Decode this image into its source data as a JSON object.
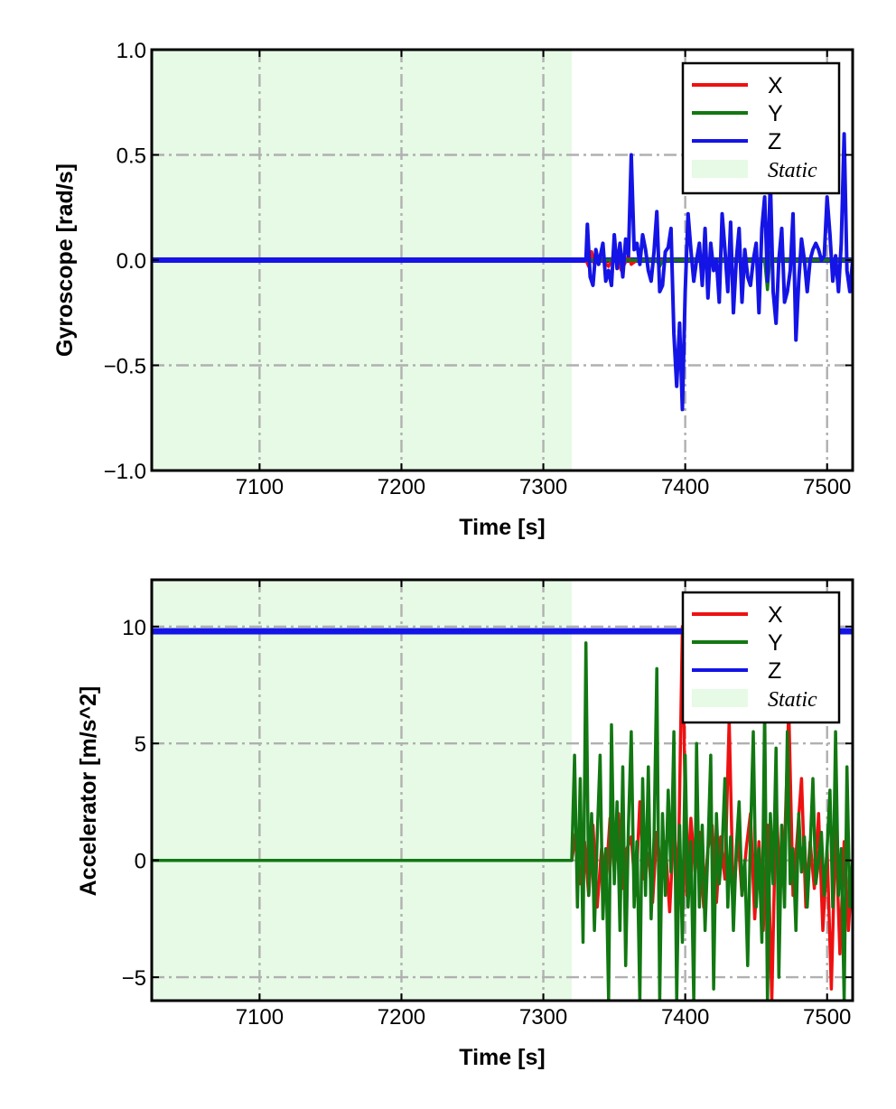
{
  "chart_data": [
    {
      "type": "line",
      "xlabel": "Time [s]",
      "ylabel": "Gyroscope [rad/s]",
      "xlim": [
        7024,
        7518
      ],
      "ylim": [
        -1.0,
        1.0
      ],
      "xticks": [
        7100,
        7200,
        7300,
        7400,
        7500
      ],
      "xtick_labels": [
        "7100",
        "7200",
        "7300",
        "7400",
        "7500"
      ],
      "yticks": [
        1.0,
        0.5,
        0.0,
        -0.5,
        -1.0
      ],
      "ytick_labels": [
        "1.0",
        "0.5",
        "0.0",
        "−0.5",
        "−1.0"
      ],
      "grid": true,
      "legend_position": "top-right",
      "static_span": {
        "label": "Static",
        "x": [
          7024,
          7320
        ],
        "color": "#e6fae6"
      },
      "series": [
        {
          "name": "X",
          "color": "#ee1111",
          "x": [
            7024,
            7330,
            7332,
            7334,
            7336,
            7340,
            7346,
            7350,
            7355,
            7360,
            7362,
            7366,
            7518
          ],
          "y": [
            0.0,
            0.0,
            -0.03,
            0.04,
            -0.02,
            0.01,
            -0.03,
            0.03,
            -0.05,
            0.02,
            -0.02,
            0.0,
            0.0
          ]
        },
        {
          "name": "Y",
          "color": "#127812",
          "x": [
            7024,
            7380,
            7382,
            7384,
            7420,
            7456,
            7458,
            7460,
            7462,
            7518
          ],
          "y": [
            0.0,
            0.0,
            -0.03,
            0.0,
            0.0,
            0.0,
            -0.14,
            0.04,
            0.0,
            0.0
          ]
        },
        {
          "name": "Z",
          "color": "#1414e6",
          "x": [
            7024,
            7330,
            7331,
            7333,
            7335,
            7337,
            7339,
            7342,
            7344,
            7346,
            7348,
            7350,
            7352,
            7354,
            7356,
            7358,
            7360,
            7362,
            7364,
            7366,
            7368,
            7370,
            7372,
            7374,
            7376,
            7378,
            7380,
            7382,
            7384,
            7386,
            7388,
            7390,
            7392,
            7394,
            7396,
            7398,
            7400,
            7402,
            7404,
            7406,
            7408,
            7410,
            7412,
            7414,
            7416,
            7418,
            7420,
            7422,
            7424,
            7426,
            7428,
            7430,
            7432,
            7434,
            7436,
            7438,
            7440,
            7442,
            7444,
            7446,
            7448,
            7450,
            7452,
            7454,
            7456,
            7458,
            7460,
            7462,
            7464,
            7466,
            7468,
            7470,
            7472,
            7474,
            7476,
            7478,
            7480,
            7482,
            7484,
            7486,
            7488,
            7490,
            7492,
            7494,
            7496,
            7498,
            7500,
            7502,
            7504,
            7506,
            7508,
            7510,
            7512,
            7514,
            7516,
            7518
          ],
          "y": [
            0.0,
            0.0,
            0.17,
            -0.08,
            -0.12,
            0.05,
            -0.02,
            0.08,
            -0.1,
            -0.05,
            -0.12,
            0.12,
            -0.04,
            0.08,
            -0.08,
            0.1,
            0.02,
            0.5,
            0.05,
            0.08,
            -0.02,
            0.12,
            0.05,
            -0.05,
            -0.1,
            0.04,
            0.23,
            -0.15,
            -0.12,
            0.04,
            0.06,
            0.15,
            -0.35,
            -0.6,
            -0.3,
            -0.71,
            -0.15,
            0.22,
            0.05,
            -0.1,
            0.0,
            0.08,
            -0.12,
            0.15,
            -0.18,
            0.08,
            -0.05,
            0.0,
            -0.2,
            0.22,
            0.05,
            -0.15,
            0.18,
            -0.25,
            0.0,
            0.15,
            -0.2,
            0.05,
            -0.08,
            -0.12,
            0.0,
            0.08,
            -0.25,
            0.15,
            0.3,
            -0.1,
            0.38,
            -0.15,
            -0.3,
            0.0,
            0.15,
            -0.2,
            -0.15,
            -0.05,
            0.22,
            -0.38,
            -0.1,
            0.1,
            0.0,
            -0.15,
            0.0,
            0.05,
            0.08,
            0.05,
            0.0,
            0.02,
            0.3,
            0.12,
            -0.1,
            0.02,
            -0.15,
            0.08,
            0.6,
            -0.05,
            -0.15,
            0.0
          ]
        }
      ]
    },
    {
      "type": "line",
      "xlabel": "Time [s]",
      "ylabel": "Accelerator [m/s^2]",
      "xlim": [
        7024,
        7518
      ],
      "ylim": [
        -6.0,
        12.0
      ],
      "xticks": [
        7100,
        7200,
        7300,
        7400,
        7500
      ],
      "xtick_labels": [
        "7100",
        "7200",
        "7300",
        "7400",
        "7500"
      ],
      "yticks": [
        10,
        5,
        0,
        -5
      ],
      "ytick_labels": [
        "10",
        "5",
        "0",
        "−5"
      ],
      "grid": true,
      "legend_position": "top-right",
      "static_span": {
        "label": "Static",
        "x": [
          7024,
          7320
        ],
        "color": "#e6fae6"
      },
      "series": [
        {
          "name": "X",
          "color": "#ee1111",
          "x": [
            7024,
            7320,
            7323,
            7326,
            7329,
            7332,
            7335,
            7338,
            7341,
            7344,
            7347,
            7350,
            7353,
            7356,
            7359,
            7362,
            7365,
            7368,
            7371,
            7374,
            7377,
            7380,
            7383,
            7386,
            7389,
            7392,
            7395,
            7398,
            7401,
            7404,
            7407,
            7410,
            7413,
            7416,
            7419,
            7422,
            7425,
            7428,
            7431,
            7434,
            7437,
            7440,
            7443,
            7446,
            7449,
            7452,
            7455,
            7458,
            7461,
            7464,
            7467,
            7470,
            7473,
            7476,
            7479,
            7482,
            7485,
            7488,
            7491,
            7494,
            7497,
            7500,
            7503,
            7506,
            7509,
            7512,
            7515,
            7518
          ],
          "y": [
            0.0,
            0.0,
            1.2,
            -1.0,
            0.8,
            -1.5,
            1.5,
            -2.0,
            0.5,
            -1.0,
            1.8,
            -0.5,
            2.0,
            -1.2,
            0.5,
            1.0,
            -1.5,
            2.5,
            -0.8,
            0.3,
            -1.8,
            1.2,
            -0.5,
            0.8,
            -2.2,
            1.5,
            -1.0,
            10.0,
            -1.5,
            1.8,
            -0.5,
            1.2,
            -2.0,
            0.5,
            1.5,
            -1.8,
            1.0,
            -0.8,
            6.0,
            -2.0,
            1.2,
            -1.5,
            0.5,
            2.0,
            -2.5,
            0.8,
            -3.0,
            1.5,
            -6.0,
            2.5,
            -1.2,
            0.5,
            6.5,
            -1.5,
            1.0,
            3.5,
            -2.0,
            0.8,
            -1.2,
            2.0,
            -3.0,
            0.5,
            -5.5,
            1.5,
            -4.0,
            0.8,
            -3.0,
            0.0
          ]
        },
        {
          "name": "Y",
          "color": "#127812",
          "x": [
            7024,
            7320,
            7322,
            7324,
            7326,
            7328,
            7330,
            7332,
            7334,
            7336,
            7338,
            7340,
            7342,
            7344,
            7346,
            7348,
            7350,
            7352,
            7354,
            7356,
            7358,
            7360,
            7362,
            7364,
            7366,
            7368,
            7370,
            7372,
            7374,
            7376,
            7378,
            7380,
            7382,
            7384,
            7386,
            7388,
            7390,
            7392,
            7394,
            7396,
            7398,
            7400,
            7402,
            7404,
            7406,
            7408,
            7410,
            7412,
            7414,
            7416,
            7418,
            7420,
            7422,
            7424,
            7426,
            7428,
            7430,
            7432,
            7434,
            7436,
            7438,
            7440,
            7442,
            7444,
            7446,
            7448,
            7450,
            7452,
            7454,
            7456,
            7458,
            7460,
            7462,
            7464,
            7466,
            7468,
            7470,
            7472,
            7474,
            7476,
            7478,
            7480,
            7482,
            7484,
            7486,
            7488,
            7490,
            7492,
            7494,
            7496,
            7498,
            7500,
            7502,
            7504,
            7506,
            7508,
            7510,
            7512,
            7514,
            7516,
            7518
          ],
          "y": [
            0.0,
            0.0,
            4.5,
            -2.0,
            3.5,
            -3.5,
            9.3,
            -1.5,
            2.0,
            -3.0,
            1.0,
            4.5,
            -2.5,
            0.5,
            -6.0,
            5.8,
            -1.0,
            2.5,
            -3.0,
            4.0,
            -4.5,
            1.5,
            5.5,
            -2.0,
            0.8,
            -6.0,
            3.5,
            -1.5,
            4.0,
            -2.5,
            1.0,
            8.2,
            -6.0,
            2.0,
            -1.5,
            3.0,
            -0.5,
            5.5,
            -6.0,
            1.5,
            -3.5,
            4.5,
            -2.0,
            0.8,
            -6.0,
            5.0,
            -2.0,
            1.5,
            -3.0,
            0.5,
            4.5,
            -5.5,
            2.0,
            -1.0,
            0.5,
            3.5,
            -2.0,
            1.0,
            -3.0,
            0.5,
            2.5,
            -1.5,
            0.0,
            -4.5,
            1.0,
            5.5,
            -2.0,
            0.5,
            -3.5,
            6.5,
            -6.0,
            2.0,
            -1.0,
            4.8,
            -5.0,
            1.5,
            -2.0,
            5.5,
            -1.0,
            0.5,
            -3.0,
            2.0,
            -0.5,
            1.0,
            -2.0,
            0.5,
            3.5,
            -1.0,
            0.0,
            1.2,
            -1.5,
            0.5,
            3.0,
            -2.0,
            5.5,
            -1.5,
            0.5,
            -6.0,
            4.0,
            -2.0,
            0.0
          ]
        },
        {
          "name": "Z",
          "color": "#1414e6",
          "x": [
            7024,
            7518
          ],
          "y": [
            9.8,
            9.8
          ]
        }
      ]
    }
  ]
}
